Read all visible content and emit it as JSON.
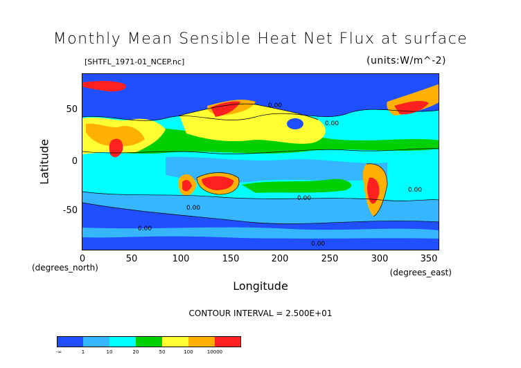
{
  "title": "Monthly Mean Sensible Heat Net Flux at surface",
  "file_label": "[SHTFL_1971-01_NCEP.nc]",
  "units_label": "(units:W/m^-2)",
  "y_axis": {
    "label": "Latitude",
    "ticks": [
      "50",
      "0",
      "-50"
    ],
    "note": "(degrees_north)"
  },
  "x_axis": {
    "label": "Longitude",
    "ticks": [
      "0",
      "50",
      "100",
      "150",
      "200",
      "250",
      "300",
      "350"
    ],
    "note": "(degrees_east)"
  },
  "contour_interval": "CONTOUR INTERVAL = 2.500E+01",
  "contour_label": "0.00",
  "colorbar": {
    "colors": [
      "#1f4fff",
      "#35b6ff",
      "#00ffff",
      "#00d000",
      "#ffff33",
      "#ffb000",
      "#ff2020"
    ],
    "labels": [
      "-∞",
      "1",
      "10",
      "20",
      "50",
      "100",
      "10000"
    ]
  },
  "map_data": {
    "type": "filled-contour",
    "lon_range": [
      0,
      360
    ],
    "lat_range": [
      -90,
      90
    ]
  }
}
